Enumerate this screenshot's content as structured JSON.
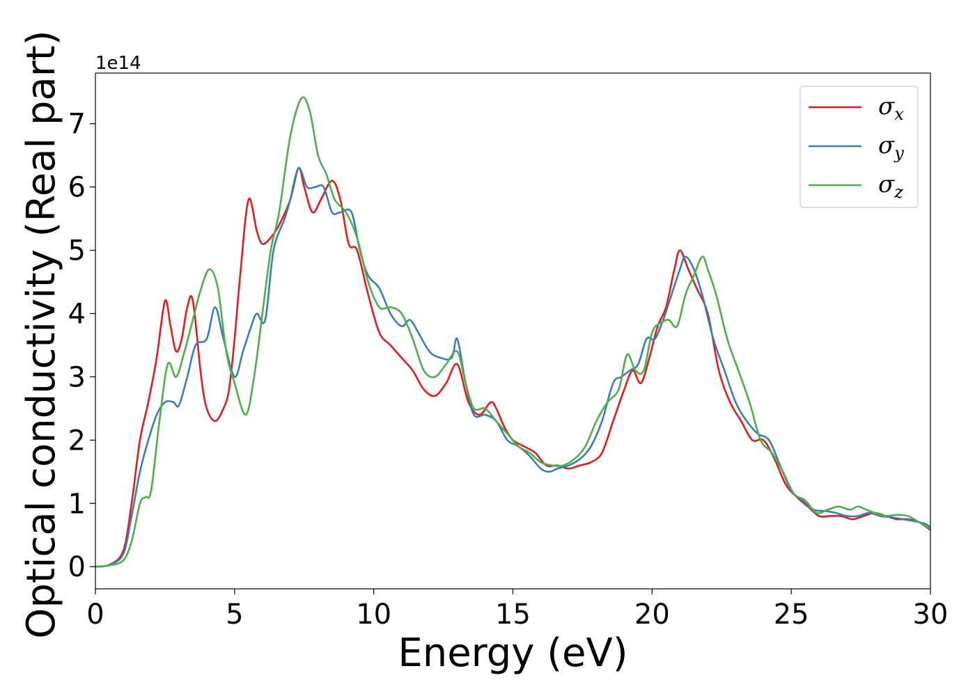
{
  "chart_data": {
    "type": "line",
    "title": "",
    "xlabel": "Energy (eV)",
    "ylabel": "Optical conductivity (Real part)",
    "y_offset_label": "1e14",
    "xlim": [
      0,
      30
    ],
    "ylim": [
      -0.35,
      7.8
    ],
    "xticks": [
      0,
      5,
      10,
      15,
      20,
      25,
      30
    ],
    "yticks": [
      0,
      1,
      2,
      3,
      4,
      5,
      6,
      7
    ],
    "grid": false,
    "legend_position": "top-right",
    "series": [
      {
        "name": "σx",
        "symbol": "σ",
        "subscript": "x",
        "color": "#e41a1c",
        "x": [
          0,
          0.5,
          1.0,
          1.3,
          1.6,
          1.9,
          2.2,
          2.5,
          2.7,
          2.9,
          3.1,
          3.3,
          3.5,
          3.8,
          4.0,
          4.3,
          4.6,
          4.8,
          5.0,
          5.2,
          5.5,
          5.8,
          6.0,
          6.3,
          6.6,
          7.0,
          7.3,
          7.5,
          7.8,
          8.1,
          8.5,
          8.8,
          9.1,
          9.4,
          9.8,
          10.2,
          10.6,
          11.0,
          11.4,
          11.8,
          12.2,
          12.6,
          13.0,
          13.4,
          13.8,
          14.2,
          14.4,
          14.7,
          15.0,
          15.4,
          15.8,
          16.2,
          16.6,
          17.0,
          17.4,
          17.8,
          18.2,
          18.6,
          19.0,
          19.3,
          19.6,
          19.9,
          20.2,
          20.5,
          20.8,
          21.0,
          21.3,
          21.6,
          22.0,
          22.4,
          22.8,
          23.2,
          23.6,
          24.0,
          24.4,
          24.8,
          25.2,
          25.6,
          26.0,
          26.4,
          26.8,
          27.2,
          27.6,
          28.0,
          28.4,
          28.8,
          29.2,
          29.6,
          30.0
        ],
        "y": [
          0,
          0.03,
          0.25,
          1.0,
          2.0,
          2.6,
          3.3,
          4.2,
          3.8,
          3.4,
          3.6,
          4.1,
          4.2,
          3.0,
          2.5,
          2.3,
          2.5,
          2.8,
          3.6,
          4.6,
          5.8,
          5.3,
          5.1,
          5.2,
          5.4,
          5.8,
          6.3,
          6.0,
          5.6,
          5.8,
          6.1,
          5.8,
          5.1,
          5.0,
          4.3,
          3.7,
          3.5,
          3.3,
          3.1,
          2.8,
          2.7,
          2.9,
          3.2,
          2.6,
          2.4,
          2.6,
          2.5,
          2.2,
          2.0,
          1.9,
          1.8,
          1.6,
          1.6,
          1.55,
          1.6,
          1.65,
          1.8,
          2.3,
          2.8,
          3.1,
          2.9,
          3.3,
          3.8,
          4.1,
          4.7,
          5.0,
          4.7,
          4.4,
          4.0,
          3.1,
          2.6,
          2.3,
          2.0,
          2.0,
          1.7,
          1.3,
          1.1,
          0.95,
          0.8,
          0.8,
          0.8,
          0.75,
          0.8,
          0.85,
          0.8,
          0.75,
          0.75,
          0.7,
          0.58
        ]
      },
      {
        "name": "σy",
        "symbol": "σ",
        "subscript": "y",
        "color": "#377eb8",
        "x": [
          0,
          0.5,
          1.0,
          1.3,
          1.6,
          1.9,
          2.2,
          2.5,
          2.8,
          3.0,
          3.3,
          3.6,
          4.0,
          4.3,
          4.6,
          5.0,
          5.3,
          5.6,
          5.8,
          6.1,
          6.4,
          6.8,
          7.0,
          7.3,
          7.6,
          7.9,
          8.2,
          8.5,
          8.8,
          9.2,
          9.5,
          9.8,
          10.2,
          10.6,
          11.0,
          11.3,
          11.6,
          12.0,
          12.4,
          12.8,
          13.0,
          13.3,
          13.6,
          14.0,
          14.4,
          14.8,
          15.2,
          15.6,
          16.0,
          16.3,
          16.6,
          17.0,
          17.4,
          17.8,
          18.2,
          18.6,
          18.9,
          19.2,
          19.5,
          19.8,
          20.1,
          20.4,
          20.7,
          21.0,
          21.2,
          21.5,
          21.8,
          22.2,
          22.6,
          23.0,
          23.4,
          23.8,
          24.2,
          24.6,
          25.0,
          25.4,
          25.8,
          26.2,
          26.6,
          27.0,
          27.4,
          27.8,
          28.2,
          28.6,
          29.0,
          29.4,
          29.8,
          30.0
        ],
        "y": [
          0,
          0.03,
          0.2,
          0.8,
          1.5,
          2.0,
          2.4,
          2.6,
          2.6,
          2.55,
          3.0,
          3.5,
          3.6,
          4.1,
          3.6,
          3.0,
          3.4,
          3.8,
          4.0,
          3.9,
          5.0,
          5.5,
          5.8,
          6.3,
          6.0,
          6.0,
          6.0,
          5.6,
          5.6,
          5.6,
          5.0,
          4.6,
          4.4,
          4.0,
          3.8,
          3.9,
          3.7,
          3.4,
          3.3,
          3.3,
          3.6,
          2.9,
          2.4,
          2.4,
          2.3,
          2.0,
          1.9,
          1.75,
          1.55,
          1.5,
          1.55,
          1.6,
          1.7,
          1.9,
          2.3,
          2.9,
          3.0,
          3.1,
          3.2,
          3.6,
          3.6,
          3.9,
          4.3,
          4.7,
          4.9,
          4.7,
          4.3,
          3.6,
          3.1,
          2.6,
          2.3,
          2.1,
          2.0,
          1.6,
          1.2,
          1.05,
          0.9,
          0.88,
          0.85,
          0.8,
          0.8,
          0.85,
          0.8,
          0.78,
          0.75,
          0.72,
          0.68,
          0.62
        ]
      },
      {
        "name": "σz",
        "symbol": "σ",
        "subscript": "z",
        "color": "#4daf4a",
        "x": [
          0,
          0.5,
          1.0,
          1.3,
          1.6,
          1.8,
          2.0,
          2.3,
          2.6,
          2.9,
          3.2,
          3.5,
          3.8,
          4.1,
          4.4,
          4.7,
          5.0,
          5.4,
          5.7,
          6.0,
          6.3,
          6.6,
          7.0,
          7.4,
          7.7,
          8.0,
          8.3,
          8.6,
          9.0,
          9.4,
          9.8,
          10.2,
          10.6,
          11.0,
          11.4,
          11.8,
          12.2,
          12.6,
          13.0,
          13.3,
          13.6,
          14.0,
          14.4,
          14.8,
          15.2,
          15.6,
          16.0,
          16.4,
          16.8,
          17.2,
          17.6,
          18.0,
          18.4,
          18.8,
          19.1,
          19.4,
          19.7,
          20.0,
          20.3,
          20.6,
          20.9,
          21.2,
          21.5,
          21.8,
          22.0,
          22.3,
          22.7,
          23.1,
          23.5,
          23.9,
          24.3,
          24.7,
          25.1,
          25.5,
          25.9,
          26.3,
          26.7,
          27.1,
          27.4,
          27.7,
          28.0,
          28.4,
          28.8,
          29.2,
          29.6,
          30.0
        ],
        "y": [
          0,
          0.02,
          0.1,
          0.4,
          1.0,
          1.1,
          1.2,
          2.3,
          3.2,
          3.0,
          3.4,
          3.9,
          4.4,
          4.7,
          4.4,
          3.4,
          2.9,
          2.4,
          3.0,
          4.0,
          5.0,
          5.6,
          6.8,
          7.4,
          7.2,
          6.5,
          6.2,
          5.8,
          5.6,
          5.2,
          4.5,
          4.1,
          4.1,
          4.0,
          3.6,
          3.1,
          3.0,
          3.2,
          3.4,
          2.9,
          2.5,
          2.5,
          2.3,
          2.1,
          1.9,
          1.8,
          1.65,
          1.6,
          1.6,
          1.7,
          1.9,
          2.3,
          2.6,
          2.8,
          3.35,
          3.1,
          3.1,
          3.7,
          3.85,
          3.9,
          3.8,
          4.3,
          4.6,
          4.9,
          4.7,
          4.3,
          3.6,
          3.1,
          2.6,
          2.0,
          1.8,
          1.5,
          1.15,
          1.05,
          0.85,
          0.9,
          0.95,
          0.9,
          0.95,
          0.9,
          0.85,
          0.8,
          0.82,
          0.8,
          0.7,
          0.6
        ]
      }
    ]
  }
}
